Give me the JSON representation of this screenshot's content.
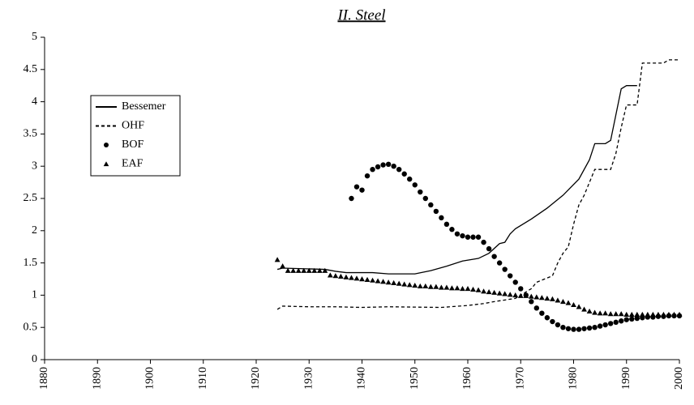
{
  "chart_data": {
    "type": "line",
    "title": "II. Steel",
    "xlim": [
      1880,
      2000
    ],
    "xticks": [
      1880,
      1890,
      1900,
      1910,
      1920,
      1930,
      1940,
      1950,
      1960,
      1970,
      1980,
      1990,
      2000
    ],
    "ylim": [
      0,
      5
    ],
    "yticks": [
      0,
      0.5,
      1,
      1.5,
      2,
      2.5,
      3,
      3.5,
      4,
      4.5,
      5
    ],
    "grid": false,
    "legend": "upper left",
    "series": [
      {
        "name": "Bessemer",
        "color": "#000000",
        "style": "solid",
        "marker": "none",
        "x": [
          1924,
          1925,
          1933,
          1935,
          1937,
          1942,
          1945,
          1950,
          1953,
          1956,
          1959,
          1962,
          1964,
          1966,
          1967,
          1968,
          1969,
          1972,
          1975,
          1978,
          1981,
          1983,
          1984,
          1986,
          1987,
          1988,
          1989,
          1990,
          1992
        ],
        "values": [
          1.4,
          1.42,
          1.4,
          1.37,
          1.35,
          1.35,
          1.33,
          1.33,
          1.38,
          1.45,
          1.53,
          1.57,
          1.65,
          1.8,
          1.82,
          1.95,
          2.03,
          2.18,
          2.35,
          2.55,
          2.8,
          3.1,
          3.35,
          3.35,
          3.4,
          3.8,
          4.2,
          4.25,
          4.25
        ]
      },
      {
        "name": "OHF",
        "color": "#000000",
        "style": "dashed",
        "marker": "none",
        "x": [
          1924,
          1925,
          1930,
          1935,
          1940,
          1945,
          1955,
          1960,
          1963,
          1965,
          1969,
          1972,
          1973,
          1976,
          1977,
          1978,
          1979,
          1980,
          1981,
          1982,
          1983,
          1984,
          1987,
          1988,
          1989,
          1990,
          1992,
          1993,
          1997,
          1998,
          2000
        ],
        "values": [
          0.78,
          0.83,
          0.82,
          0.82,
          0.81,
          0.82,
          0.81,
          0.84,
          0.87,
          0.9,
          0.95,
          1.1,
          1.2,
          1.3,
          1.5,
          1.65,
          1.75,
          2.1,
          2.4,
          2.55,
          2.75,
          2.95,
          2.95,
          3.2,
          3.6,
          3.95,
          3.95,
          4.6,
          4.6,
          4.65,
          4.65
        ]
      },
      {
        "name": "BOF",
        "color": "#000000",
        "style": "none",
        "marker": "circle",
        "x": [
          1938,
          1939,
          1940,
          1941,
          1942,
          1943,
          1944,
          1945,
          1946,
          1947,
          1948,
          1949,
          1950,
          1951,
          1952,
          1953,
          1954,
          1955,
          1956,
          1957,
          1958,
          1959,
          1960,
          1961,
          1962,
          1963,
          1964,
          1965,
          1966,
          1967,
          1968,
          1969,
          1970,
          1971,
          1972,
          1973,
          1974,
          1975,
          1976,
          1977,
          1978,
          1979,
          1980,
          1981,
          1982,
          1983,
          1984,
          1985,
          1986,
          1987,
          1988,
          1989,
          1990,
          1991,
          1992,
          1993,
          1994,
          1995,
          1996,
          1997,
          1998,
          1999,
          2000
        ],
        "values": [
          2.5,
          2.68,
          2.63,
          2.85,
          2.95,
          2.99,
          3.02,
          3.03,
          3.0,
          2.95,
          2.88,
          2.8,
          2.71,
          2.6,
          2.5,
          2.4,
          2.3,
          2.2,
          2.1,
          2.02,
          1.95,
          1.92,
          1.9,
          1.9,
          1.9,
          1.82,
          1.72,
          1.6,
          1.5,
          1.4,
          1.3,
          1.2,
          1.1,
          1.0,
          0.9,
          0.8,
          0.72,
          0.65,
          0.59,
          0.54,
          0.5,
          0.48,
          0.47,
          0.47,
          0.48,
          0.49,
          0.5,
          0.52,
          0.54,
          0.56,
          0.58,
          0.6,
          0.62,
          0.63,
          0.64,
          0.65,
          0.66,
          0.66,
          0.67,
          0.67,
          0.68,
          0.68,
          0.68
        ]
      },
      {
        "name": "EAF",
        "color": "#000000",
        "style": "none",
        "marker": "triangle",
        "x": [
          1924,
          1925,
          1926,
          1927,
          1928,
          1929,
          1930,
          1931,
          1932,
          1933,
          1934,
          1935,
          1936,
          1937,
          1938,
          1939,
          1940,
          1941,
          1942,
          1943,
          1944,
          1945,
          1946,
          1947,
          1948,
          1949,
          1950,
          1951,
          1952,
          1953,
          1954,
          1955,
          1956,
          1957,
          1958,
          1959,
          1960,
          1961,
          1962,
          1963,
          1964,
          1965,
          1966,
          1967,
          1968,
          1969,
          1970,
          1971,
          1972,
          1973,
          1974,
          1975,
          1976,
          1977,
          1978,
          1979,
          1980,
          1981,
          1982,
          1983,
          1984,
          1985,
          1986,
          1987,
          1988,
          1989,
          1990,
          1991,
          1992,
          1993,
          1994,
          1995,
          1996,
          1997,
          1998,
          1999,
          2000
        ],
        "values": [
          1.55,
          1.45,
          1.38,
          1.38,
          1.38,
          1.38,
          1.38,
          1.38,
          1.38,
          1.38,
          1.31,
          1.3,
          1.29,
          1.28,
          1.27,
          1.26,
          1.25,
          1.24,
          1.23,
          1.22,
          1.21,
          1.2,
          1.19,
          1.18,
          1.17,
          1.16,
          1.15,
          1.14,
          1.14,
          1.13,
          1.13,
          1.12,
          1.12,
          1.11,
          1.11,
          1.1,
          1.1,
          1.09,
          1.08,
          1.06,
          1.05,
          1.04,
          1.03,
          1.02,
          1.01,
          1.0,
          0.99,
          0.99,
          0.98,
          0.97,
          0.96,
          0.95,
          0.94,
          0.92,
          0.9,
          0.88,
          0.85,
          0.82,
          0.78,
          0.75,
          0.73,
          0.72,
          0.72,
          0.71,
          0.71,
          0.71,
          0.7,
          0.7,
          0.7,
          0.7,
          0.7,
          0.7,
          0.7,
          0.7,
          0.7,
          0.7,
          0.7
        ]
      }
    ]
  }
}
